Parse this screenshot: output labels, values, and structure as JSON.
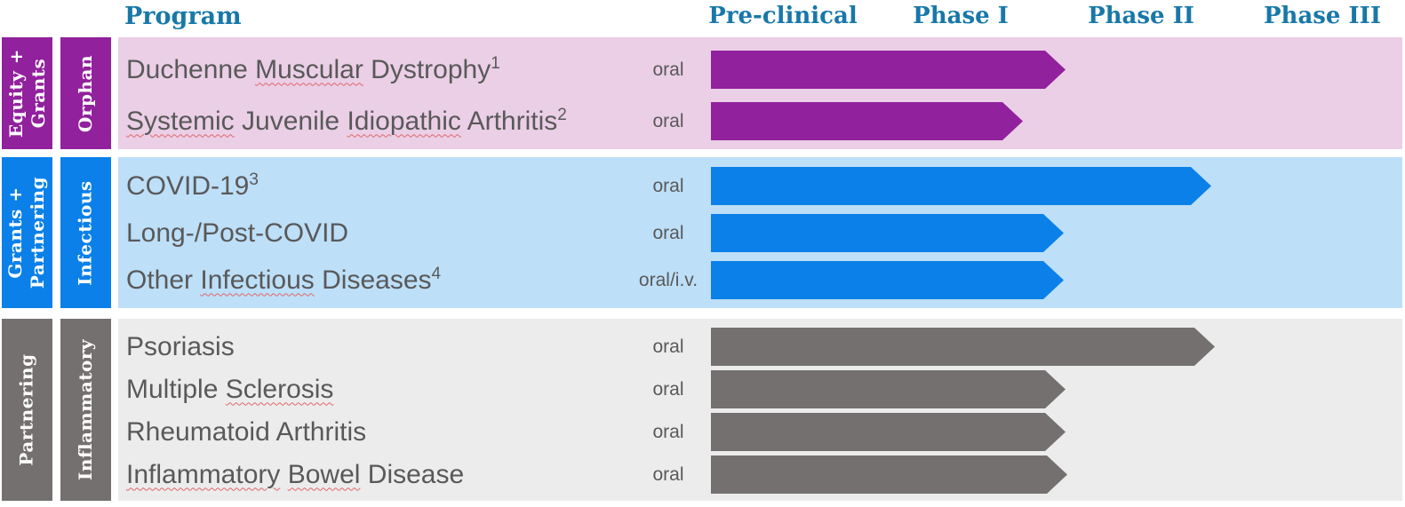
{
  "header": {
    "program_label": "Program",
    "phase_labels": [
      "Pre-clinical",
      "Phase I",
      "Phase II",
      "Phase III"
    ],
    "header_color": "#1878A8"
  },
  "colors": {
    "program_text_color": "#595959",
    "spellcheck_underline_color": "#E06666",
    "background": "#FFFFFF"
  },
  "chart_data": {
    "type": "bar",
    "orientation": "horizontal",
    "x_axis_phases": [
      "Pre-clinical",
      "Phase I",
      "Phase II",
      "Phase III"
    ],
    "value_unit": "development phase reached (1 = pre-clinical complete, 2 = Phase I complete, 3 = Phase II complete, 4 = Phase III complete)",
    "groups": [
      {
        "funding_label": "Equity +\nGrants",
        "area_label": "Orphan",
        "accent_color": "#91219C",
        "band_color": "#EACFE6",
        "rows": [
          {
            "program": "Duchenne Muscular Dystrophy",
            "superscript": "1",
            "misspelled_words": [
              "Muscular"
            ],
            "route": "oral",
            "progress": 2.07
          },
          {
            "program": "Systemic Juvenile Idiopathic Arthritis",
            "superscript": "2",
            "misspelled_words": [
              "Systemic",
              "Idiopathic"
            ],
            "route": "oral",
            "progress": 1.83
          }
        ]
      },
      {
        "funding_label": "Grants +\nPartnering",
        "area_label": "Infectious",
        "accent_color": "#0B80E8",
        "band_color": "#BDDFF8",
        "rows": [
          {
            "program": "COVID-19",
            "superscript": "3",
            "misspelled_words": [],
            "route": "oral",
            "progress": 2.88
          },
          {
            "program": "Long-/Post-COVID",
            "superscript": "",
            "misspelled_words": [],
            "route": "oral",
            "progress": 2.06
          },
          {
            "program": "Other Infectious Diseases",
            "superscript": "4",
            "misspelled_words": [
              "Infectious"
            ],
            "route": "oral/i.v.",
            "progress": 2.06
          }
        ]
      },
      {
        "funding_label": "Partnering",
        "area_label": "Inflammatory",
        "accent_color": "#757070",
        "band_color": "#ECECEC",
        "rows": [
          {
            "program": "Psoriasis",
            "superscript": "",
            "misspelled_words": [],
            "route": "oral",
            "progress": 2.9
          },
          {
            "program": "Multiple Sclerosis",
            "superscript": "",
            "misspelled_words": [
              "Sclerosis"
            ],
            "route": "oral",
            "progress": 2.07
          },
          {
            "program": "Rheumatoid Arthritis",
            "superscript": "",
            "misspelled_words": [],
            "route": "oral",
            "progress": 2.07
          },
          {
            "program": "Inflammatory Bowel Disease",
            "superscript": "",
            "misspelled_words": [
              "Inflammatory",
              "Bowel"
            ],
            "route": "oral",
            "progress": 2.08
          }
        ]
      }
    ]
  }
}
